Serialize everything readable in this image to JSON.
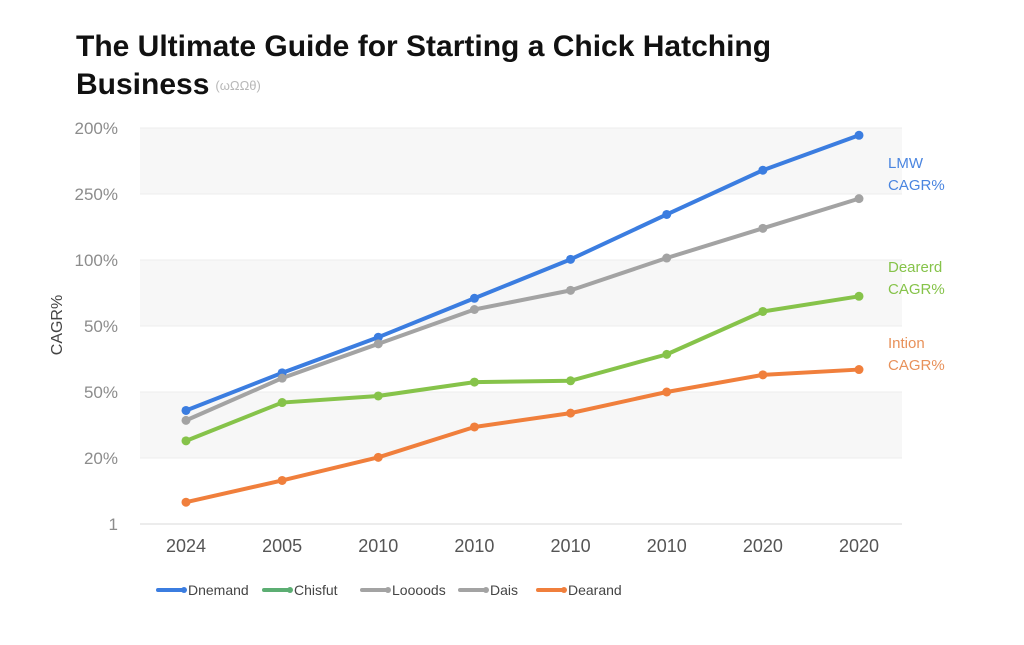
{
  "chart_data": {
    "type": "line",
    "title": "The Ultimate Guide for Starting a Chick Hatching Business",
    "subtitle": "(ωΩΩθ)",
    "xlabel": "",
    "ylabel": "CAGR%",
    "categories": [
      "2024",
      "2005",
      "2010",
      "2010",
      "2010",
      "2010",
      "2020",
      "2020"
    ],
    "y_tick_labels": [
      "1",
      "20%",
      "50%",
      "50%",
      "100%",
      "250%",
      "200%"
    ],
    "ylim": [
      0,
      6
    ],
    "grid": true,
    "series": [
      {
        "name": "Dnemand",
        "color": "#3b7de0",
        "values": [
          1.72,
          2.29,
          2.83,
          3.42,
          4.01,
          4.69,
          5.36,
          5.89
        ]
      },
      {
        "name": "Dais",
        "color": "#a3a3a3",
        "values": [
          1.57,
          2.21,
          2.73,
          3.25,
          3.54,
          4.03,
          4.48,
          4.93
        ]
      },
      {
        "name": "Chisfut",
        "color": "#86c34a",
        "values": [
          1.26,
          1.84,
          1.94,
          2.15,
          2.17,
          2.57,
          3.22,
          3.45
        ]
      },
      {
        "name": "Dearand",
        "color": "#f07f3c",
        "values": [
          0.33,
          0.66,
          1.01,
          1.47,
          1.68,
          2.0,
          2.26,
          2.34
        ]
      }
    ],
    "annotations": [
      {
        "lines": [
          "LMW",
          "CAGR%"
        ],
        "color": "#4a85e0"
      },
      {
        "lines": [
          "Dearerd",
          "CAGR%"
        ],
        "color": "#86c34a"
      },
      {
        "lines": [
          "Intion",
          "CAGR%"
        ],
        "color": "#e8915a"
      }
    ],
    "legend_position": "bottom",
    "legend": [
      {
        "label": "Dnemand",
        "color": "#3b7de0"
      },
      {
        "label": "Chisfut",
        "color": "#5cae73"
      },
      {
        "label": "Loooods",
        "color": "#a3a3a3"
      },
      {
        "label": "Dais",
        "color": "#a3a3a3"
      },
      {
        "label": "Dearand",
        "color": "#f07f3c"
      }
    ]
  }
}
